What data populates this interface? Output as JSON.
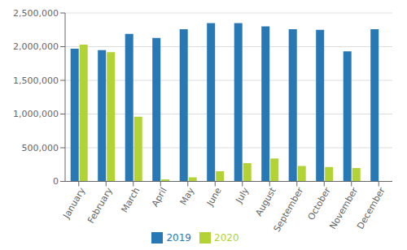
{
  "chart_data": {
    "type": "bar",
    "categories": [
      "January",
      "February",
      "March",
      "April",
      "May",
      "June",
      "July",
      "August",
      "September",
      "October",
      "November",
      "December"
    ],
    "series": [
      {
        "name": "2019",
        "color": "#2878b5",
        "values": [
          1970000,
          1950000,
          2190000,
          2130000,
          2260000,
          2350000,
          2350000,
          2300000,
          2260000,
          2250000,
          1930000,
          2260000
        ]
      },
      {
        "name": "2020",
        "color": "#b2d235",
        "values": [
          2030000,
          1920000,
          960000,
          30000,
          60000,
          150000,
          270000,
          340000,
          230000,
          215000,
          200000,
          0
        ]
      }
    ],
    "ylim": [
      0,
      2500000
    ],
    "yticks": [
      0,
      {
        "value": 500000,
        "label": "500,000"
      },
      {
        "value": 1000000,
        "label": "1,000,000"
      },
      {
        "value": 1500000,
        "label": "1,500,000"
      },
      {
        "value": 2000000,
        "label": "2,000,000"
      },
      {
        "value": 2500000,
        "label": "2,500,000"
      }
    ],
    "grid": true,
    "legend": "bottom"
  }
}
